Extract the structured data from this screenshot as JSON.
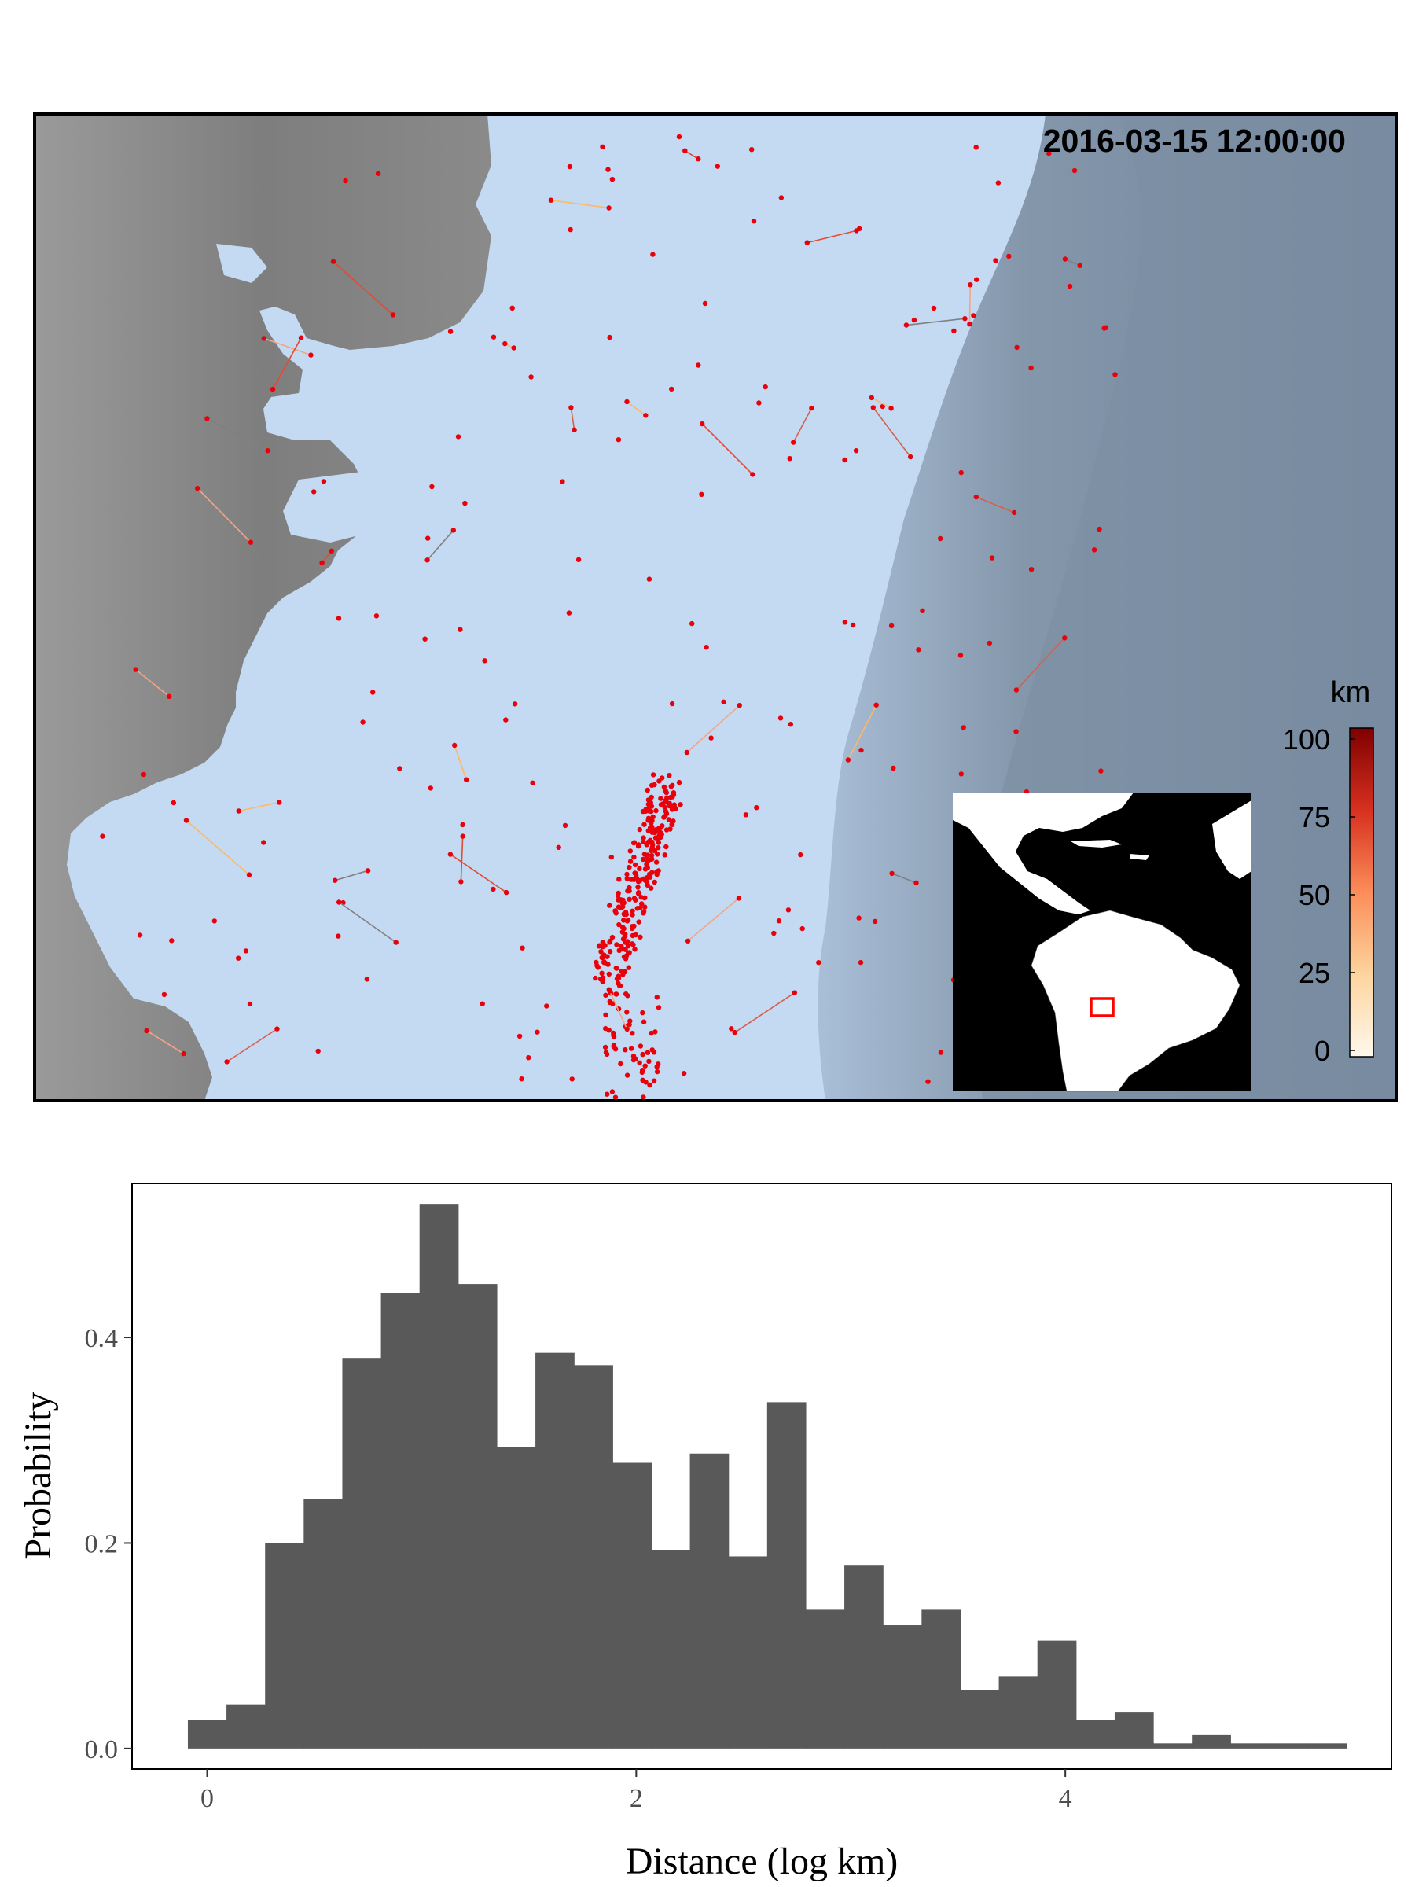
{
  "map_panel": {
    "timestamp": "2016-03-15 12:00:00",
    "colorbar": {
      "title": "km",
      "ticks": [
        "100",
        "75",
        "50",
        "25",
        "0"
      ],
      "colors": [
        "#fff8ec",
        "#fdd49e",
        "#fc8d59",
        "#d7301f",
        "#7f0000"
      ]
    },
    "colors": {
      "land": "#8c8c8c",
      "shelf_water": "#c4d9f2",
      "deep_water": "#7c8fa3",
      "vessel": "#e8000b",
      "inset_land": "#ffffff",
      "inset_sea": "#000000",
      "inset_box": "#ff0000"
    }
  },
  "chart_data": {
    "type": "bar",
    "xlabel": "Distance (log km)",
    "ylabel": "Probability",
    "xticks": [
      "0",
      "2",
      "4"
    ],
    "yticks": [
      "0.0",
      "0.2",
      "0.4"
    ],
    "ylim": [
      -0.02,
      0.55
    ],
    "xlim": [
      -0.35,
      5.52
    ],
    "bar_width": 0.18,
    "bar_color": "#595959",
    "x": [
      0.0,
      0.18,
      0.36,
      0.54,
      0.72,
      0.9,
      1.08,
      1.26,
      1.44,
      1.62,
      1.8,
      1.98,
      2.16,
      2.34,
      2.52,
      2.7,
      2.88,
      3.06,
      3.24,
      3.42,
      3.6,
      3.78,
      3.96,
      4.14,
      4.32,
      4.5,
      4.68,
      4.86,
      5.04,
      5.22
    ],
    "values": [
      0.028,
      0.043,
      0.2,
      0.243,
      0.38,
      0.443,
      0.53,
      0.452,
      0.293,
      0.385,
      0.373,
      0.278,
      0.193,
      0.287,
      0.187,
      0.337,
      0.135,
      0.178,
      0.12,
      0.135,
      0.057,
      0.07,
      0.105,
      0.028,
      0.035,
      0.005,
      0.013,
      0.005,
      0.005,
      0.005
    ]
  }
}
